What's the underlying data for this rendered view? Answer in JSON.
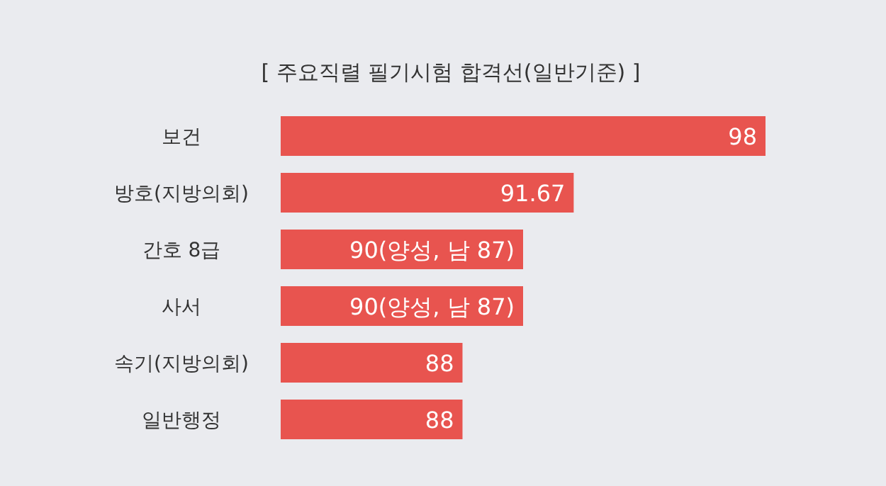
{
  "chart_data": {
    "type": "bar",
    "orientation": "horizontal",
    "title": "[ 주요직렬 필기시험 합격선(일반기준) ]",
    "categories": [
      "보건",
      "방호(지방의회)",
      "간호 8급",
      "사서",
      "속기(지방의회)",
      "일반행정"
    ],
    "values": [
      98,
      91.67,
      90,
      90,
      88,
      88
    ],
    "value_labels": [
      "98",
      "91.67",
      "90(양성, 남 87)",
      "90(양성, 남 87)",
      "88",
      "88"
    ],
    "color": "#e8544f",
    "xlim": [
      82,
      98
    ]
  }
}
